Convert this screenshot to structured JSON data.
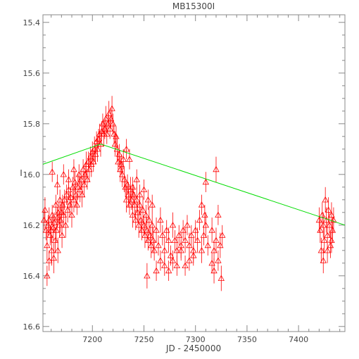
{
  "chart_data": {
    "type": "scatter",
    "title": "MB15300I",
    "xlabel": "JD - 2450000",
    "ylabel": "I",
    "xlim": [
      7152,
      7445
    ],
    "ylim": [
      16.62,
      15.37
    ],
    "y_inverted": true,
    "x_ticks": [
      7200,
      7250,
      7300,
      7350,
      7400
    ],
    "y_ticks": [
      15.4,
      15.6,
      15.8,
      16.0,
      16.2,
      16.4,
      16.6
    ],
    "x_tick_labels": [
      "7200",
      "7250",
      "7300",
      "7350",
      "7400"
    ],
    "y_tick_labels": [
      "15.4",
      "15.6",
      "15.8",
      "16.0",
      "16.2",
      "16.4",
      "16.6"
    ],
    "grid": false,
    "colors": {
      "points": "#ff0000",
      "model": "#00dd00",
      "frame": "#888888"
    },
    "model_line": {
      "name": "",
      "x": [
        7152,
        7208,
        7445
      ],
      "y": [
        15.96,
        15.88,
        16.2
      ]
    },
    "series": [
      {
        "name": "",
        "marker": "triangle-open",
        "error_bars": true,
        "points": [
          [
            7153,
            16.18,
            0.04
          ],
          [
            7154,
            16.14,
            0.05
          ],
          [
            7155,
            16.22,
            0.04
          ],
          [
            7156,
            16.28,
            0.06
          ],
          [
            7157,
            16.2,
            0.04
          ],
          [
            7158,
            16.18,
            0.05
          ],
          [
            7159,
            16.24,
            0.04
          ],
          [
            7160,
            16.22,
            0.05
          ],
          [
            7160.5,
            16.3,
            0.06
          ],
          [
            7161,
            16.16,
            0.04
          ],
          [
            7162,
            16.21,
            0.05
          ],
          [
            7162.5,
            16.33,
            0.06
          ],
          [
            7163,
            16.19,
            0.04
          ],
          [
            7164,
            16.26,
            0.05
          ],
          [
            7164.5,
            16.12,
            0.04
          ],
          [
            7165,
            16.22,
            0.05
          ],
          [
            7166,
            16.17,
            0.04
          ],
          [
            7166.5,
            16.3,
            0.05
          ],
          [
            7167,
            16.15,
            0.04
          ],
          [
            7168,
            16.2,
            0.05
          ],
          [
            7168.5,
            16.1,
            0.04
          ],
          [
            7169,
            16.18,
            0.05
          ],
          [
            7170,
            16.15,
            0.04
          ],
          [
            7170.5,
            16.24,
            0.05
          ],
          [
            7171,
            16.12,
            0.04
          ],
          [
            7172,
            16.16,
            0.05
          ],
          [
            7173,
            16.1,
            0.04
          ],
          [
            7174,
            16.2,
            0.05
          ],
          [
            7175,
            16.08,
            0.04
          ],
          [
            7176,
            16.14,
            0.05
          ],
          [
            7177,
            16.06,
            0.04
          ],
          [
            7178,
            16.12,
            0.05
          ],
          [
            7179,
            16.09,
            0.04
          ],
          [
            7180,
            16.16,
            0.05
          ],
          [
            7181,
            16.05,
            0.04
          ],
          [
            7182,
            16.1,
            0.05
          ],
          [
            7183,
            16.03,
            0.04
          ],
          [
            7184,
            16.08,
            0.05
          ],
          [
            7185,
            16.12,
            0.04
          ],
          [
            7186,
            16.05,
            0.05
          ],
          [
            7187,
            16.0,
            0.04
          ],
          [
            7188,
            16.06,
            0.05
          ],
          [
            7189,
            16.02,
            0.04
          ],
          [
            7190,
            16.08,
            0.05
          ],
          [
            7191,
            15.98,
            0.04
          ],
          [
            7192,
            16.04,
            0.05
          ],
          [
            7193,
            16.0,
            0.04
          ],
          [
            7194,
            15.96,
            0.05
          ],
          [
            7195,
            16.02,
            0.04
          ],
          [
            7196,
            15.95,
            0.04
          ],
          [
            7197,
            15.98,
            0.05
          ],
          [
            7198,
            15.93,
            0.04
          ],
          [
            7199,
            15.96,
            0.05
          ],
          [
            7200,
            15.91,
            0.04
          ],
          [
            7201,
            15.95,
            0.04
          ],
          [
            7202,
            15.9,
            0.05
          ],
          [
            7203,
            15.92,
            0.04
          ],
          [
            7204,
            15.87,
            0.04
          ],
          [
            7205,
            15.9,
            0.05
          ],
          [
            7206,
            15.86,
            0.04
          ],
          [
            7207,
            15.84,
            0.04
          ],
          [
            7208,
            15.88,
            0.05
          ],
          [
            7209,
            15.83,
            0.04
          ],
          [
            7210,
            15.8,
            0.04
          ],
          [
            7211,
            15.84,
            0.05
          ],
          [
            7212,
            15.82,
            0.04
          ],
          [
            7213,
            15.78,
            0.05
          ],
          [
            7214,
            15.84,
            0.04
          ],
          [
            7215,
            15.8,
            0.04
          ],
          [
            7216,
            15.76,
            0.05
          ],
          [
            7217,
            15.82,
            0.04
          ],
          [
            7218,
            15.78,
            0.04
          ],
          [
            7219,
            15.74,
            0.05
          ],
          [
            7220,
            15.8,
            0.04
          ],
          [
            7221,
            15.84,
            0.04
          ],
          [
            7222,
            15.88,
            0.05
          ],
          [
            7223,
            15.85,
            0.04
          ],
          [
            7224,
            15.9,
            0.05
          ],
          [
            7225,
            15.95,
            0.04
          ],
          [
            7226,
            15.92,
            0.04
          ],
          [
            7227,
            15.98,
            0.05
          ],
          [
            7228,
            15.96,
            0.04
          ],
          [
            7229,
            16.0,
            0.05
          ],
          [
            7230,
            15.94,
            0.04
          ],
          [
            7231,
            16.02,
            0.05
          ],
          [
            7232,
            16.05,
            0.04
          ],
          [
            7233,
            16.1,
            0.05
          ],
          [
            7234,
            16.04,
            0.04
          ],
          [
            7235,
            16.08,
            0.05
          ],
          [
            7236,
            16.12,
            0.04
          ],
          [
            7237,
            16.06,
            0.05
          ],
          [
            7238,
            16.1,
            0.04
          ],
          [
            7239,
            16.16,
            0.05
          ],
          [
            7240,
            16.08,
            0.04
          ],
          [
            7241,
            16.12,
            0.05
          ],
          [
            7242,
            16.18,
            0.04
          ],
          [
            7243,
            16.1,
            0.05
          ],
          [
            7244,
            16.15,
            0.04
          ],
          [
            7245,
            16.2,
            0.05
          ],
          [
            7246,
            16.12,
            0.04
          ],
          [
            7247,
            16.18,
            0.05
          ],
          [
            7248,
            16.22,
            0.04
          ],
          [
            7249,
            16.14,
            0.05
          ],
          [
            7250,
            16.2,
            0.04
          ],
          [
            7251,
            16.24,
            0.05
          ],
          [
            7252,
            16.16,
            0.04
          ],
          [
            7253,
            16.22,
            0.05
          ],
          [
            7254,
            16.26,
            0.04
          ],
          [
            7255,
            16.18,
            0.05
          ],
          [
            7256,
            16.24,
            0.04
          ],
          [
            7257,
            16.28,
            0.05
          ],
          [
            7258,
            16.2,
            0.04
          ],
          [
            7259,
            16.26,
            0.05
          ],
          [
            7260,
            16.3,
            0.04
          ],
          [
            7262,
            16.22,
            0.05
          ],
          [
            7264,
            16.28,
            0.04
          ],
          [
            7266,
            16.18,
            0.05
          ],
          [
            7268,
            16.24,
            0.04
          ],
          [
            7270,
            16.3,
            0.05
          ],
          [
            7272,
            16.22,
            0.04
          ],
          [
            7274,
            16.26,
            0.05
          ],
          [
            7276,
            16.32,
            0.04
          ],
          [
            7278,
            16.2,
            0.05
          ],
          [
            7280,
            16.26,
            0.04
          ],
          [
            7282,
            16.3,
            0.05
          ],
          [
            7284,
            16.24,
            0.04
          ],
          [
            7286,
            16.28,
            0.05
          ],
          [
            7288,
            16.22,
            0.04
          ],
          [
            7290,
            16.26,
            0.05
          ],
          [
            7292,
            16.2,
            0.04
          ],
          [
            7294,
            16.28,
            0.05
          ],
          [
            7296,
            16.24,
            0.04
          ],
          [
            7298,
            16.3,
            0.05
          ],
          [
            7300,
            16.22,
            0.04
          ],
          [
            7302,
            16.26,
            0.05
          ],
          [
            7304,
            16.18,
            0.04
          ],
          [
            7306,
            16.3,
            0.05
          ],
          [
            7308,
            16.24,
            0.04
          ],
          [
            7310,
            16.2,
            0.05
          ],
          [
            7312,
            16.28,
            0.04
          ],
          [
            7316,
            16.22,
            0.05
          ],
          [
            7318,
            16.3,
            0.04
          ],
          [
            7320,
            16.26,
            0.05
          ],
          [
            7322,
            16.34,
            0.04
          ],
          [
            7324,
            16.28,
            0.05
          ],
          [
            7326,
            16.24,
            0.04
          ],
          [
            7156,
            16.4,
            0.04
          ],
          [
            7158,
            16.34,
            0.04
          ],
          [
            7161,
            15.99,
            0.04
          ],
          [
            7166,
            16.04,
            0.04
          ],
          [
            7172,
            16.0,
            0.04
          ],
          [
            7177,
            16.02,
            0.04
          ],
          [
            7182,
            15.98,
            0.04
          ],
          [
            7233,
            15.9,
            0.04
          ],
          [
            7236,
            15.94,
            0.04
          ],
          [
            7239,
            16.05,
            0.04
          ],
          [
            7243,
            16.02,
            0.04
          ],
          [
            7246,
            16.08,
            0.04
          ],
          [
            7250,
            16.06,
            0.04
          ],
          [
            7254,
            16.1,
            0.04
          ],
          [
            7258,
            16.12,
            0.04
          ],
          [
            7262,
            16.38,
            0.04
          ],
          [
            7266,
            16.34,
            0.04
          ],
          [
            7270,
            16.36,
            0.04
          ],
          [
            7274,
            16.38,
            0.04
          ],
          [
            7278,
            16.34,
            0.04
          ],
          [
            7282,
            16.36,
            0.04
          ],
          [
            7286,
            16.3,
            0.04
          ],
          [
            7290,
            16.36,
            0.04
          ],
          [
            7294,
            16.34,
            0.04
          ],
          [
            7298,
            16.32,
            0.04
          ],
          [
            7253,
            16.4,
            0.05
          ],
          [
            7310,
            16.03,
            0.04
          ],
          [
            7320,
            15.98,
            0.05
          ],
          [
            7318,
            16.38,
            0.05
          ],
          [
            7325,
            16.41,
            0.05
          ],
          [
            7316,
            16.35,
            0.04
          ],
          [
            7306,
            16.12,
            0.04
          ],
          [
            7309,
            16.16,
            0.04
          ],
          [
            7322,
            16.16,
            0.04
          ],
          [
            7420,
            16.18,
            0.05
          ],
          [
            7421,
            16.22,
            0.05
          ],
          [
            7422,
            16.3,
            0.05
          ],
          [
            7423,
            16.16,
            0.05
          ],
          [
            7424,
            16.2,
            0.05
          ],
          [
            7425,
            16.26,
            0.05
          ],
          [
            7426,
            16.1,
            0.05
          ],
          [
            7427,
            16.18,
            0.05
          ],
          [
            7428,
            16.24,
            0.05
          ],
          [
            7429,
            16.14,
            0.05
          ],
          [
            7430,
            16.2,
            0.05
          ],
          [
            7431,
            16.28,
            0.05
          ],
          [
            7432,
            16.16,
            0.05
          ],
          [
            7433,
            16.22,
            0.05
          ],
          [
            7434,
            16.18,
            0.05
          ],
          [
            7424,
            16.34,
            0.05
          ],
          [
            7428,
            16.3,
            0.05
          ],
          [
            7432,
            16.26,
            0.05
          ]
        ]
      }
    ]
  }
}
